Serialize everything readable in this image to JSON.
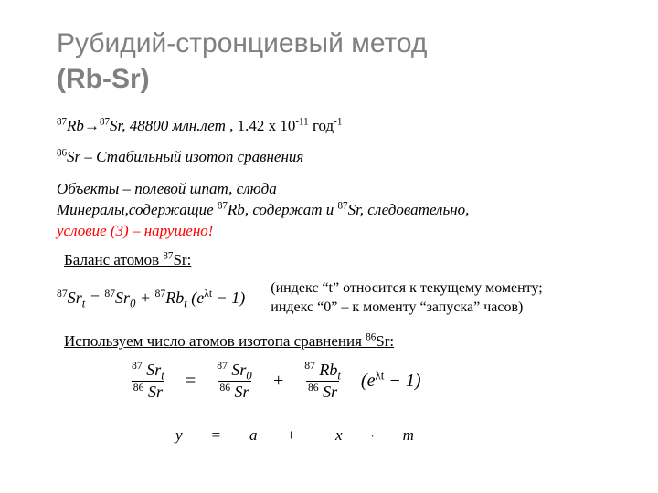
{
  "title": {
    "part1": "Рубидий-стронциевый метод ",
    "part2": "(Rb-Sr)"
  },
  "line1": {
    "decay_html": "<sup>87</sup><i>Rb</i>→<sup>87</sup><i>Sr</i>, 48800 <i>млн.лет</i>",
    "lambda_prefix": " , 1.42 ",
    "lambda_times": "х",
    "lambda_base": " 10",
    "lambda_exp": "-11",
    "lambda_unit_prefix": " год",
    "lambda_unit_exp": "-1"
  },
  "line2": {
    "isotope_html": "<sup>86</sup><i>Sr</i> – ",
    "desc": "  Стабильный изотоп сравнения"
  },
  "objects": {
    "l1": "Объекты – полевой шпат, слюда",
    "l2_pre": "Минералы,содержащие ",
    "l2_rb": "87",
    "l2_rb_sym": "Rb",
    "l2_mid": ", содержат и ",
    "l2_sr": "87",
    "l2_sr_sym": "Sr",
    "l2_post": ", следовательно,",
    "l3_red": "условие (3) – нарушено!"
  },
  "balance": {
    "label_pre": "Баланс атомов ",
    "label_sup": "87",
    "label_sym": "Sr:",
    "eq_html": "<sup>87</sup><i>Sr</i><sub>t</sub> = <sup>87</sup><i>Sr</i><sub>0</sub> + <sup>87</sup><i>Rb</i><sub>t</sub> (<i>e</i><sup>λt</sup> − 1)",
    "note1": "(индекс “t” относится к текущему моменту;",
    "note2": "индекс “0” – к моменту “запуска” часов)"
  },
  "ref": {
    "label_pre": "Используем число атомов изотопа сравнения ",
    "label_sup": "86",
    "label_sym": "Sr:"
  },
  "ratio": {
    "f1_num": "<sup>87</sup> <i>Sr</i><sub>t</sub>",
    "f1_den": "<sup>86</sup> <i>Sr</i>",
    "eq": "=",
    "f2_num": "<sup>87</sup> <i>Sr</i><sub>0</sub>",
    "f2_den": "<sup>86</sup> <i>Sr</i>",
    "plus": "+",
    "f3_num": "<sup>87</sup> <i>Rb</i><sub>t</sub>",
    "f3_den": "<sup>86</sup> <i>Sr</i>",
    "tail": "(<i>e</i><sup>λt</sup> − 1)"
  },
  "linear": {
    "y": "y",
    "eq": "=",
    "a": "a",
    "plus": "+",
    "x": "x",
    "dot": "·",
    "m": "m"
  }
}
